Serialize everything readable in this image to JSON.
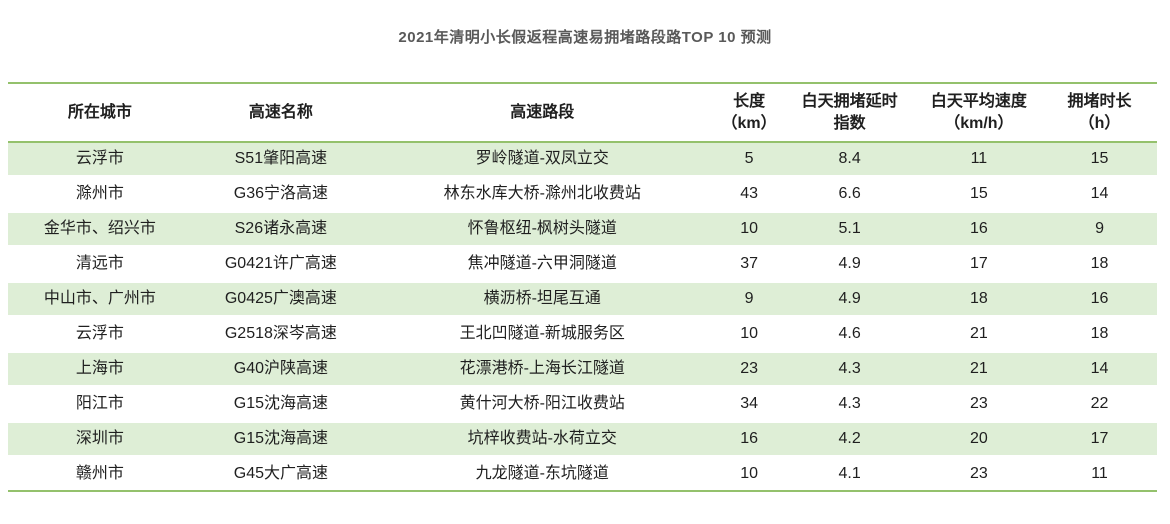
{
  "page": {
    "title": "2021年清明小长假返程高速易拥堵路段路TOP 10 预测"
  },
  "colors": {
    "accent_green": "#94c16c",
    "band_green": "#deeed6",
    "title_gray": "#595959",
    "text_black": "#1f1f1f"
  },
  "table": {
    "columns": [
      {
        "key": "city",
        "line1": "所在城市",
        "line2": ""
      },
      {
        "key": "highway",
        "line1": "高速名称",
        "line2": ""
      },
      {
        "key": "section",
        "line1": "高速路段",
        "line2": ""
      },
      {
        "key": "length",
        "line1": "长度",
        "line2": "（km）"
      },
      {
        "key": "delay-index",
        "line1": "白天拥堵延时",
        "line2": "指数"
      },
      {
        "key": "avg-speed",
        "line1": "白天平均速度",
        "line2": "（km/h）"
      },
      {
        "key": "duration",
        "line1": "拥堵时长",
        "line2": "（h）"
      }
    ],
    "rows": [
      [
        "云浮市",
        "S51肇阳高速",
        "罗岭隧道-双凤立交",
        "5",
        "8.4",
        "11",
        "15"
      ],
      [
        "滁州市",
        "G36宁洛高速",
        "林东水库大桥-滁州北收费站",
        "43",
        "6.6",
        "15",
        "14"
      ],
      [
        "金华市、绍兴市",
        "S26诸永高速",
        "怀鲁枢纽-枫树头隧道",
        "10",
        "5.1",
        "16",
        "9"
      ],
      [
        "清远市",
        "G0421许广高速",
        "焦冲隧道-六甲洞隧道",
        "37",
        "4.9",
        "17",
        "18"
      ],
      [
        "中山市、广州市",
        "G0425广澳高速",
        "横沥桥-坦尾互通",
        "9",
        "4.9",
        "18",
        "16"
      ],
      [
        "云浮市",
        "G2518深岑高速",
        "王北凹隧道-新城服务区",
        "10",
        "4.6",
        "21",
        "18"
      ],
      [
        "上海市",
        "G40沪陕高速",
        "花漂港桥-上海长江隧道",
        "23",
        "4.3",
        "21",
        "14"
      ],
      [
        "阳江市",
        "G15沈海高速",
        "黄什河大桥-阳江收费站",
        "34",
        "4.3",
        "23",
        "22"
      ],
      [
        "深圳市",
        "G15沈海高速",
        "坑梓收费站-水荷立交",
        "16",
        "4.2",
        "20",
        "17"
      ],
      [
        "赣州市",
        "G45大广高速",
        "九龙隧道-东坑隧道",
        "10",
        "4.1",
        "23",
        "11"
      ]
    ]
  },
  "chart_data": {
    "type": "table",
    "title": "2021年清明小长假返程高速易拥堵路段路TOP 10 预测",
    "columns": [
      "所在城市",
      "高速名称",
      "高速路段",
      "长度（km）",
      "白天拥堵延时指数",
      "白天平均速度（km/h）",
      "拥堵时长（h）"
    ],
    "rows": [
      [
        "云浮市",
        "S51肇阳高速",
        "罗岭隧道-双凤立交",
        5,
        8.4,
        11,
        15
      ],
      [
        "滁州市",
        "G36宁洛高速",
        "林东水库大桥-滁州北收费站",
        43,
        6.6,
        15,
        14
      ],
      [
        "金华市、绍兴市",
        "S26诸永高速",
        "怀鲁枢纽-枫树头隧道",
        10,
        5.1,
        16,
        9
      ],
      [
        "清远市",
        "G0421许广高速",
        "焦冲隧道-六甲洞隧道",
        37,
        4.9,
        17,
        18
      ],
      [
        "中山市、广州市",
        "G0425广澳高速",
        "横沥桥-坦尾互通",
        9,
        4.9,
        18,
        16
      ],
      [
        "云浮市",
        "G2518深岑高速",
        "王北凹隧道-新城服务区",
        10,
        4.6,
        21,
        18
      ],
      [
        "上海市",
        "G40沪陕高速",
        "花漂港桥-上海长江隧道",
        23,
        4.3,
        21,
        14
      ],
      [
        "阳江市",
        "G15沈海高速",
        "黄什河大桥-阳江收费站",
        34,
        4.3,
        23,
        22
      ],
      [
        "深圳市",
        "G15沈海高速",
        "坑梓收费站-水荷立交",
        16,
        4.2,
        20,
        17
      ],
      [
        "赣州市",
        "G45大广高速",
        "九龙隧道-东坑隧道",
        10,
        4.1,
        23,
        11
      ]
    ],
    "layout": {
      "striped_rows": "odd rows light green",
      "header_rule": "green top and bottom border",
      "bottom_rule": "green border"
    }
  }
}
